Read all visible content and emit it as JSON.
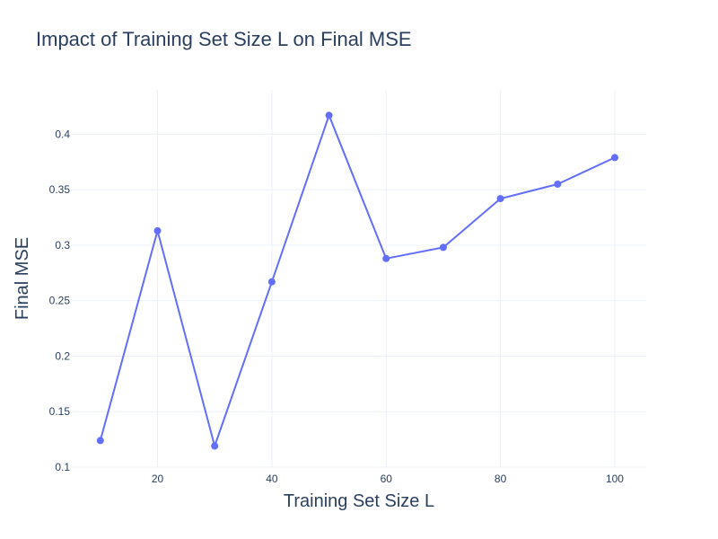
{
  "chart_data": {
    "type": "line",
    "title": "Impact of Training Set Size L on Final MSE",
    "xlabel": "Training Set Size L",
    "ylabel": "Final MSE",
    "x": [
      10,
      20,
      30,
      40,
      50,
      60,
      70,
      80,
      90,
      100
    ],
    "series": [
      {
        "values": [
          0.124,
          0.313,
          0.119,
          0.267,
          0.417,
          0.288,
          0.298,
          0.342,
          0.355,
          0.379
        ]
      }
    ],
    "xlim": [
      5,
      105.5
    ],
    "ylim": [
      0.1,
      0.44
    ],
    "xticks": [
      20,
      40,
      60,
      80,
      100
    ],
    "yticks": [
      0.1,
      0.15,
      0.2,
      0.25,
      0.3,
      0.35,
      0.4
    ],
    "xtick_labels": [
      "20",
      "40",
      "60",
      "80",
      "100"
    ],
    "ytick_labels": [
      "0.1",
      "0.15",
      "0.2",
      "0.25",
      "0.3",
      "0.35",
      "0.4"
    ],
    "grid": true,
    "legend": false,
    "colors": {
      "line": "#636efa",
      "grid": "#ebf0f8",
      "text": "#2a3f5f"
    }
  }
}
